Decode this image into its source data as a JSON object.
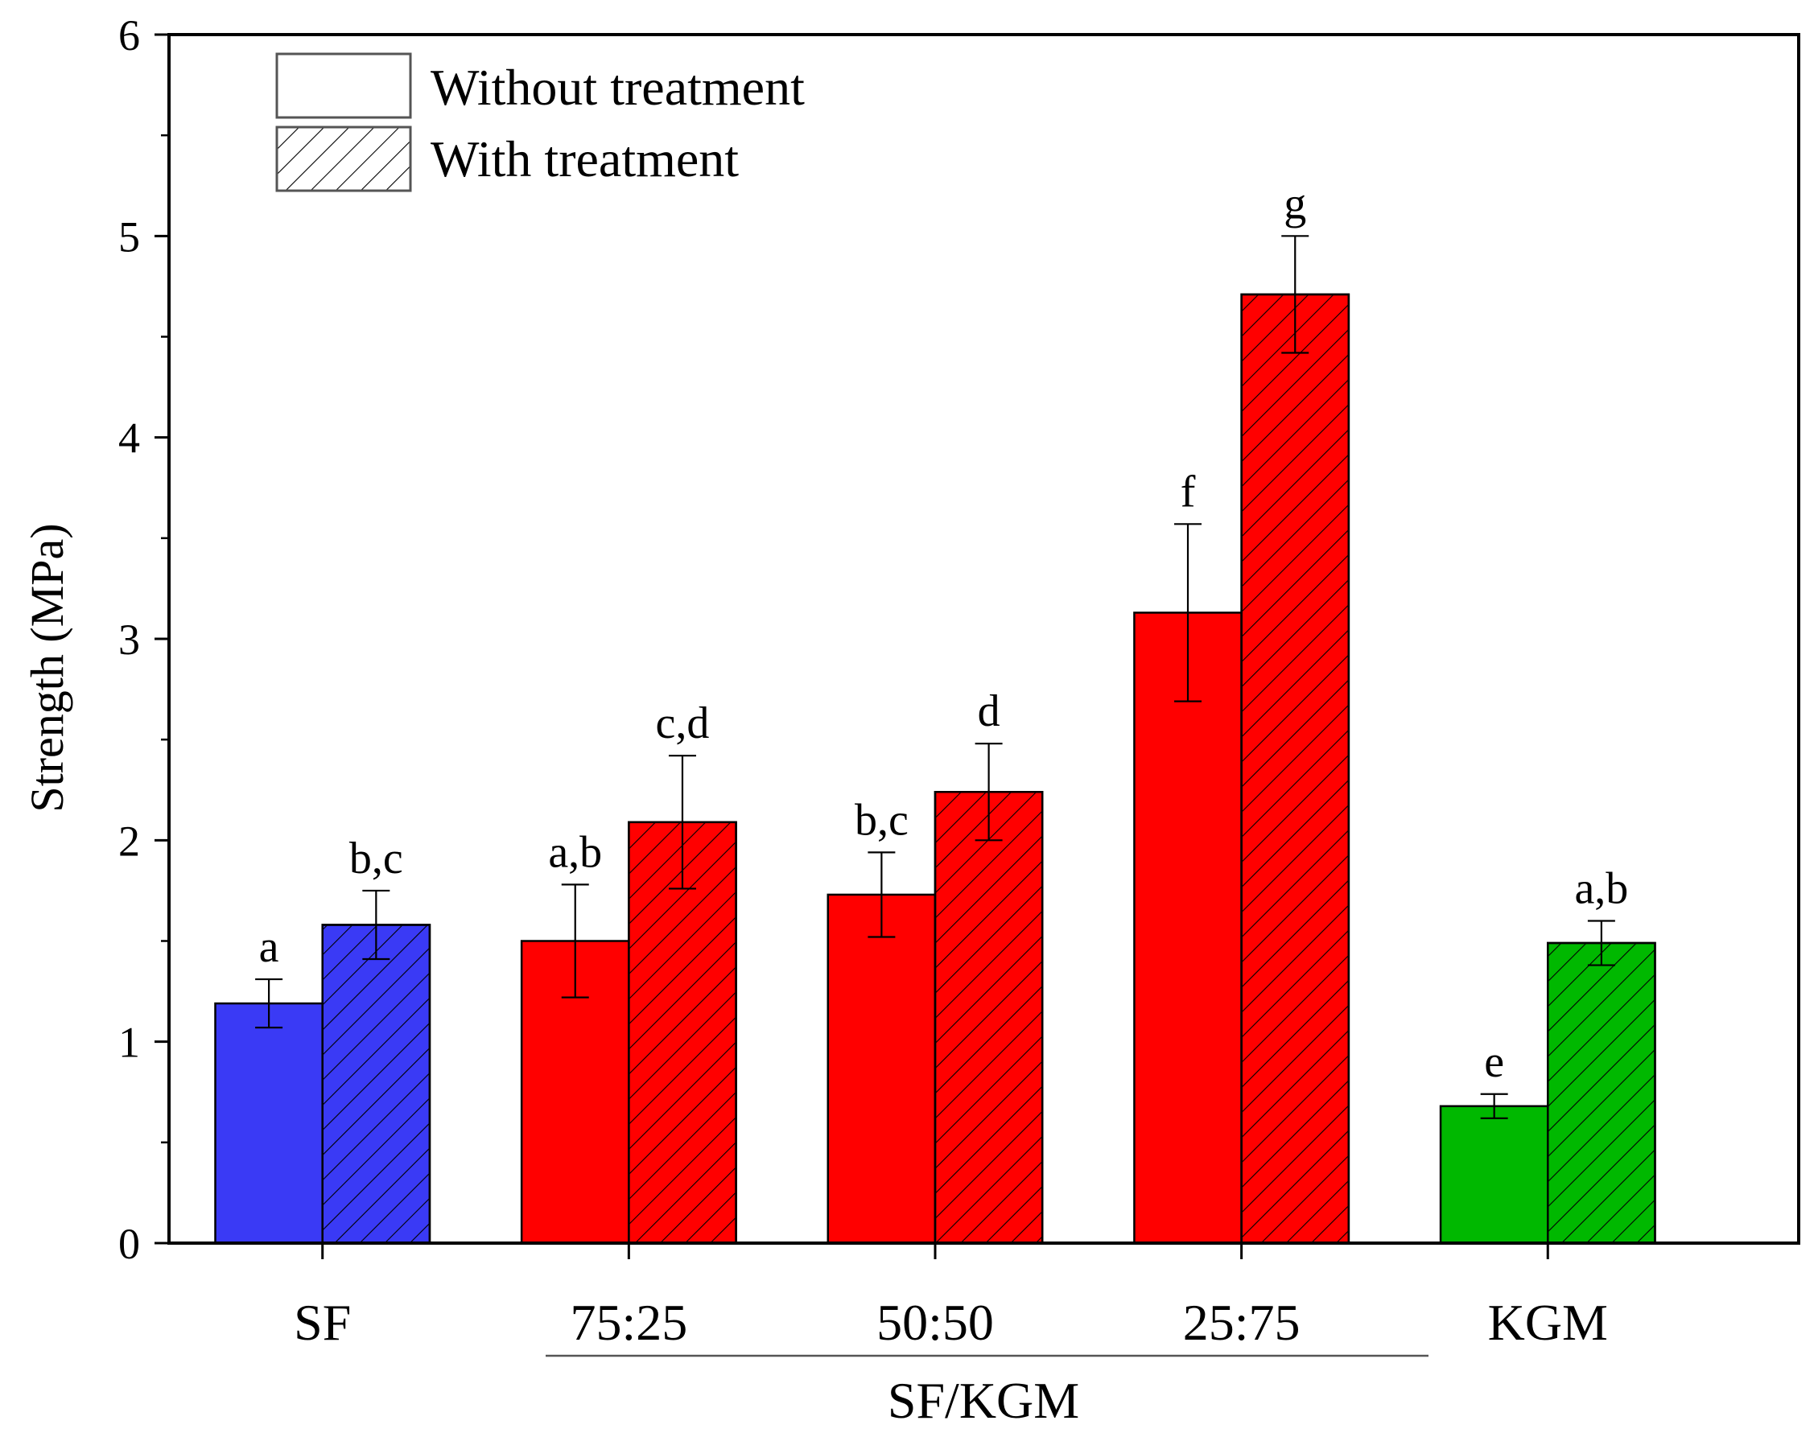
{
  "chart_data": {
    "type": "bar",
    "categories": [
      "SF",
      "75:25",
      "50:50",
      "25:75",
      "KGM"
    ],
    "group_label": "SF/KGM",
    "ylabel": "Strength (MPa)",
    "xlabel": "",
    "ylim": [
      0,
      6
    ],
    "yticks": [
      "0",
      "1",
      "2",
      "3",
      "4",
      "5",
      "6"
    ],
    "grid": false,
    "legend_position": "top-left",
    "category_colors": [
      "#3a3af5",
      "#ff0000",
      "#ff0000",
      "#ff0000",
      "#00b800"
    ],
    "series": [
      {
        "name": "Without treatment",
        "pattern": "solid",
        "values": [
          1.19,
          1.5,
          1.73,
          3.13,
          0.68
        ],
        "errors": [
          0.12,
          0.28,
          0.21,
          0.44,
          0.06
        ],
        "letters": [
          "a",
          "a,b",
          "b,c",
          "f",
          "e"
        ]
      },
      {
        "name": "With treatment",
        "pattern": "hatched",
        "values": [
          1.58,
          2.09,
          2.24,
          4.71,
          1.49
        ],
        "errors": [
          0.17,
          0.33,
          0.24,
          0.29,
          0.11
        ],
        "letters": [
          "b,c",
          "c,d",
          "d",
          "g",
          "a,b"
        ]
      }
    ]
  }
}
